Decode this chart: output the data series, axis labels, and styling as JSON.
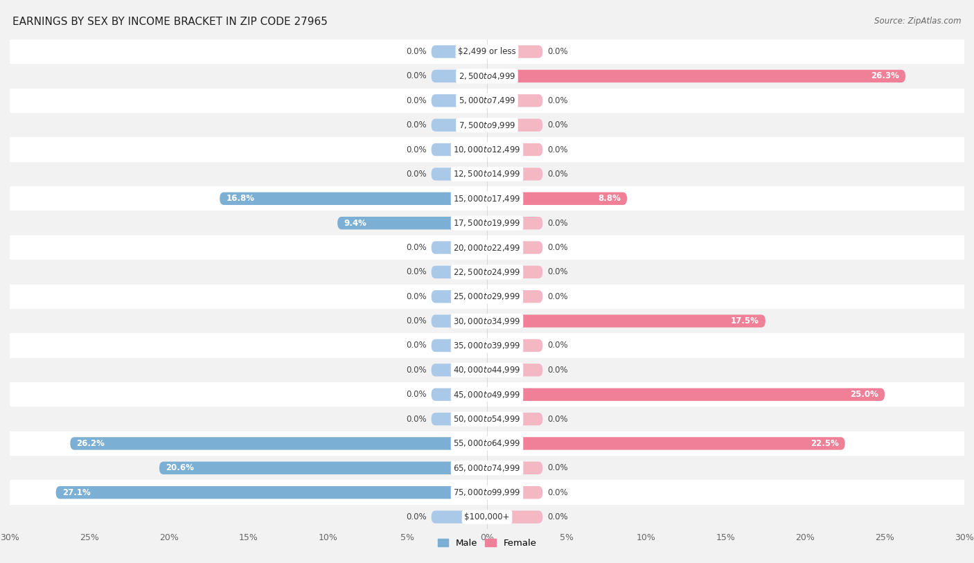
{
  "title": "EARNINGS BY SEX BY INCOME BRACKET IN ZIP CODE 27965",
  "source": "Source: ZipAtlas.com",
  "categories": [
    "$2,499 or less",
    "$2,500 to $4,999",
    "$5,000 to $7,499",
    "$7,500 to $9,999",
    "$10,000 to $12,499",
    "$12,500 to $14,999",
    "$15,000 to $17,499",
    "$17,500 to $19,999",
    "$20,000 to $22,499",
    "$22,500 to $24,999",
    "$25,000 to $29,999",
    "$30,000 to $34,999",
    "$35,000 to $39,999",
    "$40,000 to $44,999",
    "$45,000 to $49,999",
    "$50,000 to $54,999",
    "$55,000 to $64,999",
    "$65,000 to $74,999",
    "$75,000 to $99,999",
    "$100,000+"
  ],
  "male": [
    0.0,
    0.0,
    0.0,
    0.0,
    0.0,
    0.0,
    16.8,
    9.4,
    0.0,
    0.0,
    0.0,
    0.0,
    0.0,
    0.0,
    0.0,
    0.0,
    26.2,
    20.6,
    27.1,
    0.0
  ],
  "female": [
    0.0,
    26.3,
    0.0,
    0.0,
    0.0,
    0.0,
    8.8,
    0.0,
    0.0,
    0.0,
    0.0,
    17.5,
    0.0,
    0.0,
    25.0,
    0.0,
    22.5,
    0.0,
    0.0,
    0.0
  ],
  "male_color": "#7bafd4",
  "female_color": "#f08098",
  "male_color_light": "#aac9e8",
  "female_color_light": "#f4b8c4",
  "male_label": "Male",
  "female_label": "Female",
  "xlim": 30.0,
  "bar_height": 0.52,
  "stub_size": 3.5,
  "bg_color": "#f2f2f2",
  "row_color_odd": "#f2f2f2",
  "row_color_even": "#ffffff",
  "title_fontsize": 11,
  "source_fontsize": 8.5,
  "axis_fontsize": 9,
  "value_fontsize": 8.5,
  "category_fontsize": 8.5
}
